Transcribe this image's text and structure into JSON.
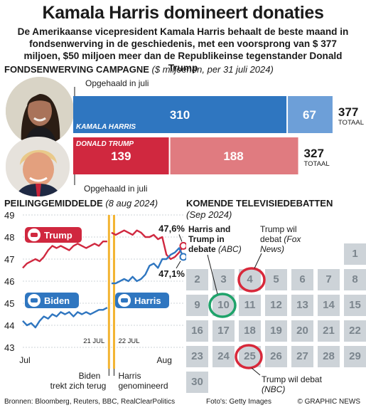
{
  "title": "Kamala Harris domineert donaties",
  "subtitle": "De Amerikaanse vicepresident Kamala Harris behaalt de beste maand in fondsenwerving in de geschiedenis, met een voorsprong van $ 377 miljoen, $50 miljoen meer dan de Republikeinse tegenstander Donald Trump",
  "fundraising": {
    "heading": "FONDSENWERVING CAMPAGNE",
    "subheading": "($ miljoenen, per 31 juli 2024)",
    "callout_top": "Opgehaald in juli",
    "callout_bottom": "Opgehaald in juli",
    "total_label": "TOTAAL"
  },
  "polls": {
    "heading": "PEILINGGEMIDDELDE",
    "subheading": "(8 aug 2024)",
    "harris_label": "Harris",
    "biden_label": "Biden",
    "trump_label": "Trump",
    "val_trump": "47,6%",
    "val_harris": "47,1%",
    "marker_1": "21 JUL",
    "marker_2": "22 JUL",
    "note_biden_1": "Biden",
    "note_biden_2": "trekt zich terug",
    "note_harris_1": "Harris",
    "note_harris_2": "genomineerd"
  },
  "debates": {
    "heading": "KOMENDE TELEVISIEDEBATTEN",
    "subheading": "(Sep 2024)",
    "anno_both_1": "Harris and",
    "anno_both_2": "Trump in",
    "anno_both_3": "debate",
    "anno_both_net": "(ABC)",
    "anno_fox_1": "Trump wil",
    "anno_fox_2": "debat",
    "anno_fox_net": "(Fox",
    "anno_fox_net2": "News)",
    "anno_nbc_1": "Trump wil debat",
    "anno_nbc_net": "(NBC)",
    "days": [
      "1",
      "2",
      "3",
      "4",
      "5",
      "6",
      "7",
      "8",
      "9",
      "10",
      "11",
      "12",
      "13",
      "14",
      "15",
      "16",
      "17",
      "18",
      "19",
      "20",
      "21",
      "22",
      "23",
      "24",
      "25",
      "26",
      "27",
      "28",
      "29",
      "30"
    ]
  },
  "footer": {
    "sources": "Bronnen: Bloomberg, Reuters, BBC, RealClearPolitics",
    "photo": "Foto's: Getty Images",
    "brand": "© GRAPHIC NEWS"
  },
  "colors": {
    "harris_blue": "#2f76c0",
    "harris_light": "#6d9fd8",
    "trump_red": "#d0283f",
    "trump_light": "#e07b80",
    "calendar_grey": "#cdd3d8",
    "highlight_red": "#d8283a",
    "highlight_green": "#1fa36a"
  },
  "chart_data": [
    {
      "type": "bar",
      "stacked": true,
      "orientation": "horizontal",
      "categories": [
        "KAMALA HARRIS",
        "DONALD TRUMP"
      ],
      "series": [
        {
          "name": "Opgehaald in juli",
          "values": [
            310,
            139
          ]
        },
        {
          "values": [
            67,
            188
          ]
        }
      ],
      "totals": [
        377,
        327
      ],
      "title": "FONDSENWERVING CAMPAGNE",
      "subtitle": "($ miljoenen, per 31 juli 2024)"
    },
    {
      "type": "line",
      "title": "PEILINGGEMIDDELDE",
      "subtitle": "(8 aug 2024)",
      "x_ticks": [
        "Jul",
        "Aug"
      ],
      "ylim": [
        43,
        49
      ],
      "y_ticks": [
        43,
        44,
        45,
        46,
        47,
        48,
        49
      ],
      "markers": [
        "21 JUL",
        "22 JUL"
      ],
      "series": [
        {
          "name": "Trump",
          "color": "#d0283f",
          "segment": "before",
          "x": [
            1,
            2,
            3,
            4,
            5,
            6,
            7,
            8,
            9,
            10,
            11,
            12,
            13,
            14,
            15,
            16,
            17,
            18,
            19,
            20,
            21
          ],
          "y": [
            46.6,
            46.8,
            46.9,
            47.0,
            46.9,
            47.1,
            47.4,
            47.6,
            47.5,
            47.6,
            47.5,
            47.4,
            47.6,
            47.7,
            47.6,
            47.5,
            47.6,
            47.7,
            47.6,
            47.8,
            47.8
          ]
        },
        {
          "name": "Trump",
          "color": "#d0283f",
          "segment": "after",
          "x": [
            22,
            23,
            24,
            25,
            26,
            27,
            28,
            29,
            30,
            31,
            32,
            33,
            34,
            35,
            36,
            37,
            38,
            39
          ],
          "y": [
            48.2,
            48.1,
            48.2,
            48.3,
            48.2,
            48.1,
            48.3,
            48.2,
            48.0,
            48.0,
            48.1,
            47.9,
            48.0,
            47.2,
            47.0,
            47.1,
            47.3,
            47.6
          ]
        },
        {
          "name": "Biden",
          "color": "#2f76c0",
          "segment": "before",
          "x": [
            1,
            2,
            3,
            4,
            5,
            6,
            7,
            8,
            9,
            10,
            11,
            12,
            13,
            14,
            15,
            16,
            17,
            18,
            19,
            20,
            21
          ],
          "y": [
            44.2,
            44.0,
            44.1,
            43.9,
            44.2,
            44.4,
            44.3,
            44.5,
            44.4,
            44.6,
            44.5,
            44.6,
            44.4,
            44.6,
            44.5,
            44.6,
            44.5,
            44.6,
            44.7,
            44.7,
            44.8
          ]
        },
        {
          "name": "Harris",
          "color": "#2f76c0",
          "segment": "after",
          "x": [
            22,
            23,
            24,
            25,
            26,
            27,
            28,
            29,
            30,
            31,
            32,
            33,
            34,
            35,
            36,
            37,
            38,
            39
          ],
          "y": [
            45.9,
            45.9,
            46.0,
            46.1,
            46.0,
            46.2,
            46.0,
            46.1,
            46.3,
            46.7,
            46.8,
            46.6,
            47.0,
            47.0,
            47.2,
            47.3,
            47.5,
            47.1
          ]
        }
      ],
      "annotations": [
        "47,6%",
        "47,1%",
        "Biden trekt zich terug",
        "Harris genomineerd"
      ]
    }
  ]
}
